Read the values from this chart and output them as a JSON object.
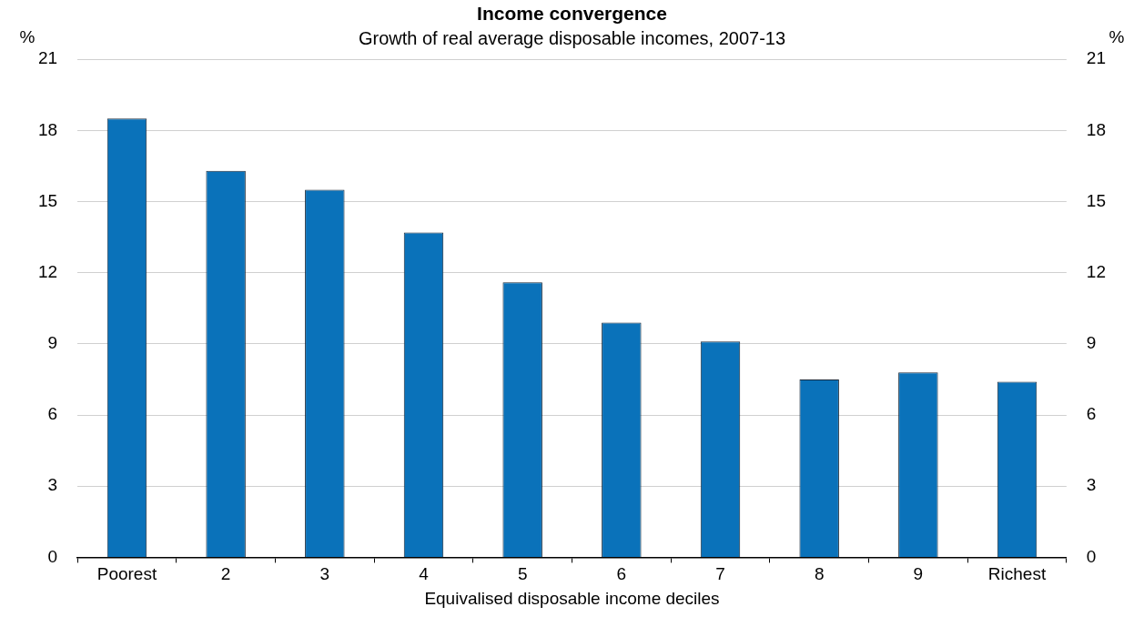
{
  "chart_data": {
    "type": "bar",
    "title": "Income convergence",
    "subtitle": "Growth of real average disposable incomes, 2007-13",
    "xlabel": "Equivalised disposable income deciles",
    "ylabel": "%",
    "y2label": "%",
    "categories": [
      "Poorest",
      "2",
      "3",
      "4",
      "5",
      "6",
      "7",
      "8",
      "9",
      "Richest"
    ],
    "values": [
      18.5,
      16.3,
      15.5,
      13.7,
      11.6,
      9.9,
      9.1,
      7.5,
      7.8,
      7.4
    ],
    "color": "#0a72ba",
    "ylim": [
      0,
      21
    ],
    "yticks": [
      0,
      3,
      6,
      9,
      12,
      15,
      18,
      21
    ],
    "y2lim": [
      0,
      21
    ],
    "y2ticks": [
      0,
      3,
      6,
      9,
      12,
      15,
      18,
      21
    ],
    "grid": "y",
    "legend": false
  }
}
